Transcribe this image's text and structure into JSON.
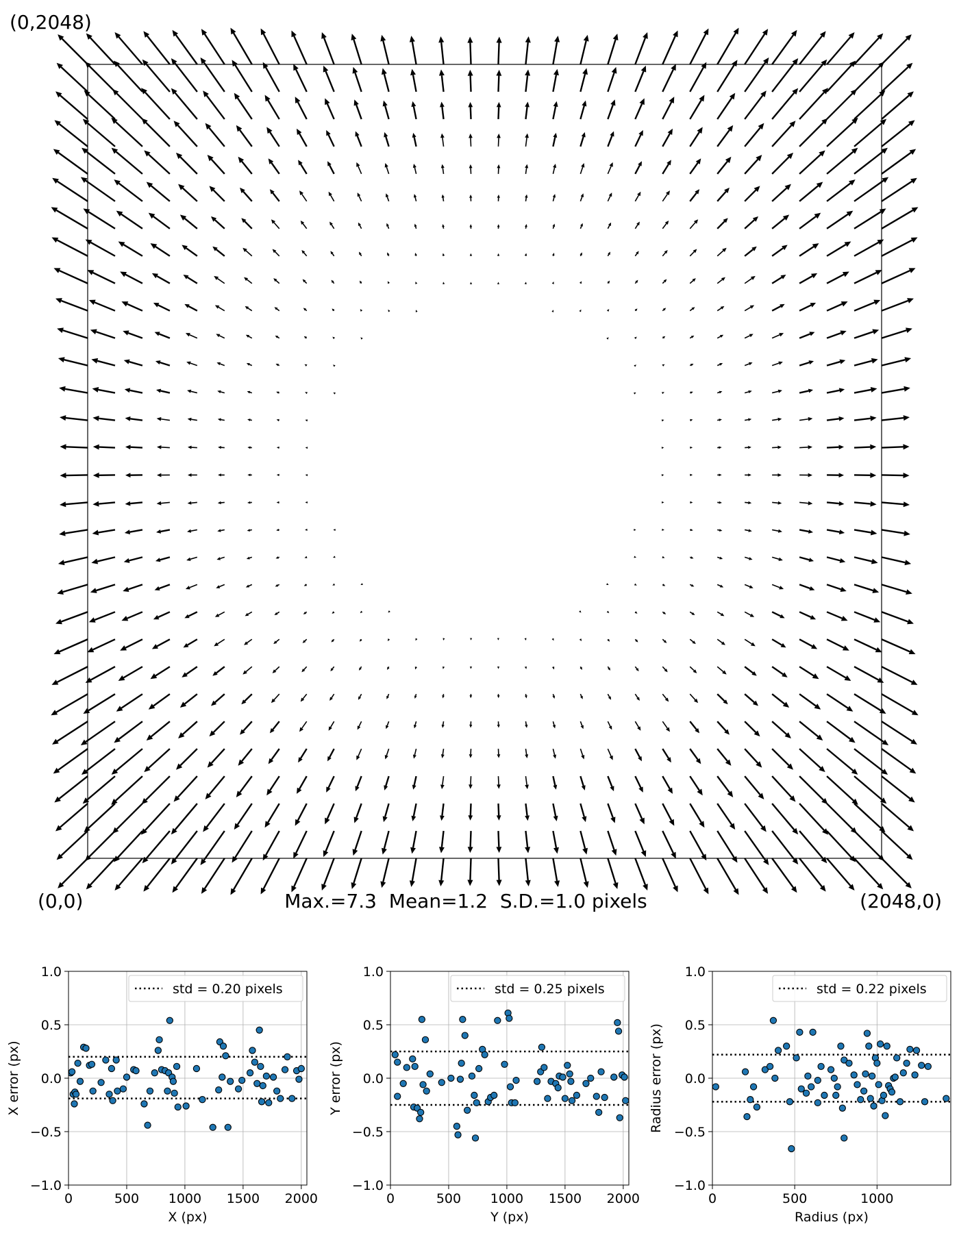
{
  "chart_data": [
    {
      "type": "quiver",
      "title": "",
      "corner_labels": {
        "top_left": "(0,2048)",
        "bottom_left": "(0,0)",
        "bottom_right": "(2048,0)"
      },
      "stats_text": "Max.=7.3  Mean=1.2  S.D.=1.0 pixels",
      "field": {
        "grid": 30,
        "range": [
          0,
          2048
        ],
        "max_magnitude": 7.3,
        "mean_magnitude": 1.2,
        "sd_magnitude": 1.0,
        "description_note": ""
      }
    },
    {
      "type": "scatter",
      "xlabel": "X (px)",
      "ylabel": "X error (px)",
      "xlim": [
        0,
        2048
      ],
      "ylim": [
        -1.0,
        1.0
      ],
      "xticks": [
        0,
        500,
        1000,
        1500,
        2000
      ],
      "yticks": [
        -1.0,
        -0.5,
        0.0,
        0.5,
        1.0
      ],
      "xtick_labels": [
        "0",
        "500",
        "1000",
        "1500",
        "2000"
      ],
      "ytick_labels": [
        "−1.0",
        "−0.5",
        "0.0",
        "0.5",
        "1.0"
      ],
      "grid": true,
      "legend": {
        "label": "std = 0.20 pixels",
        "placement": "upper right"
      },
      "hlines": [
        0.2,
        -0.19
      ],
      "points": [
        [
          20,
          0.05
        ],
        [
          30,
          0.06
        ],
        [
          40,
          -0.15
        ],
        [
          50,
          -0.24
        ],
        [
          55,
          -0.13
        ],
        [
          65,
          -0.15
        ],
        [
          80,
          0.14
        ],
        [
          100,
          -0.03
        ],
        [
          130,
          0.29
        ],
        [
          150,
          0.28
        ],
        [
          180,
          0.12
        ],
        [
          200,
          0.13
        ],
        [
          210,
          -0.12
        ],
        [
          280,
          -0.04
        ],
        [
          320,
          0.17
        ],
        [
          350,
          -0.15
        ],
        [
          370,
          0.09
        ],
        [
          380,
          -0.21
        ],
        [
          410,
          0.17
        ],
        [
          420,
          -0.12
        ],
        [
          470,
          -0.1
        ],
        [
          500,
          0.01
        ],
        [
          560,
          0.08
        ],
        [
          580,
          0.07
        ],
        [
          650,
          -0.24
        ],
        [
          680,
          -0.44
        ],
        [
          700,
          -0.12
        ],
        [
          740,
          0.05
        ],
        [
          770,
          0.26
        ],
        [
          780,
          0.36
        ],
        [
          800,
          0.08
        ],
        [
          830,
          0.07
        ],
        [
          850,
          -0.12
        ],
        [
          860,
          0.05
        ],
        [
          870,
          0.54
        ],
        [
          890,
          0.01
        ],
        [
          900,
          -0.03
        ],
        [
          910,
          -0.14
        ],
        [
          930,
          0.11
        ],
        [
          940,
          -0.27
        ],
        [
          1010,
          -0.26
        ],
        [
          1100,
          0.09
        ],
        [
          1150,
          -0.2
        ],
        [
          1240,
          -0.46
        ],
        [
          1290,
          -0.11
        ],
        [
          1300,
          0.34
        ],
        [
          1320,
          0.01
        ],
        [
          1330,
          0.3
        ],
        [
          1350,
          0.21
        ],
        [
          1370,
          -0.46
        ],
        [
          1390,
          -0.03
        ],
        [
          1460,
          -0.1
        ],
        [
          1490,
          -0.02
        ],
        [
          1560,
          0.05
        ],
        [
          1580,
          0.26
        ],
        [
          1600,
          0.15
        ],
        [
          1620,
          -0.05
        ],
        [
          1640,
          0.45
        ],
        [
          1650,
          0.11
        ],
        [
          1660,
          -0.22
        ],
        [
          1670,
          -0.07
        ],
        [
          1700,
          0.02
        ],
        [
          1720,
          -0.23
        ],
        [
          1760,
          0.01
        ],
        [
          1790,
          -0.12
        ],
        [
          1820,
          -0.19
        ],
        [
          1860,
          0.08
        ],
        [
          1880,
          0.2
        ],
        [
          1920,
          -0.19
        ],
        [
          1960,
          0.07
        ],
        [
          1980,
          -0.01
        ],
        [
          2000,
          0.09
        ]
      ]
    },
    {
      "type": "scatter",
      "xlabel": "Y (px)",
      "ylabel": "Y error (px)",
      "xlim": [
        0,
        2048
      ],
      "ylim": [
        -1.0,
        1.0
      ],
      "xticks": [
        0,
        500,
        1000,
        1500,
        2000
      ],
      "yticks": [
        -1.0,
        -0.5,
        0.0,
        0.5,
        1.0
      ],
      "xtick_labels": [
        "0",
        "500",
        "1000",
        "1500",
        "2000"
      ],
      "ytick_labels": [
        "−1.0",
        "−0.5",
        "0.0",
        "0.5",
        "1.0"
      ],
      "grid": true,
      "legend": {
        "label": "std = 0.25 pixels",
        "placement": "upper right"
      },
      "hlines": [
        0.25,
        -0.25
      ],
      "points": [
        [
          40,
          0.22
        ],
        [
          60,
          0.15
        ],
        [
          60,
          -0.17
        ],
        [
          110,
          -0.05
        ],
        [
          140,
          0.1
        ],
        [
          190,
          0.18
        ],
        [
          200,
          -0.27
        ],
        [
          210,
          0.11
        ],
        [
          230,
          -0.28
        ],
        [
          250,
          -0.38
        ],
        [
          260,
          -0.32
        ],
        [
          270,
          0.55
        ],
        [
          280,
          -0.06
        ],
        [
          300,
          0.36
        ],
        [
          310,
          -0.12
        ],
        [
          340,
          0.04
        ],
        [
          440,
          -0.04
        ],
        [
          520,
          0.0
        ],
        [
          570,
          -0.45
        ],
        [
          580,
          -0.53
        ],
        [
          600,
          -0.01
        ],
        [
          610,
          0.14
        ],
        [
          620,
          0.55
        ],
        [
          640,
          0.4
        ],
        [
          660,
          -0.3
        ],
        [
          700,
          0.02
        ],
        [
          720,
          -0.16
        ],
        [
          730,
          -0.56
        ],
        [
          740,
          -0.23
        ],
        [
          760,
          0.09
        ],
        [
          790,
          0.27
        ],
        [
          810,
          0.22
        ],
        [
          840,
          -0.22
        ],
        [
          860,
          -0.18
        ],
        [
          890,
          -0.16
        ],
        [
          920,
          0.54
        ],
        [
          980,
          0.13
        ],
        [
          1010,
          0.61
        ],
        [
          1020,
          0.56
        ],
        [
          1030,
          -0.08
        ],
        [
          1040,
          -0.23
        ],
        [
          1070,
          -0.23
        ],
        [
          1080,
          -0.02
        ],
        [
          1260,
          -0.03
        ],
        [
          1290,
          0.06
        ],
        [
          1300,
          0.29
        ],
        [
          1320,
          0.1
        ],
        [
          1350,
          -0.19
        ],
        [
          1380,
          -0.03
        ],
        [
          1420,
          -0.05
        ],
        [
          1440,
          -0.09
        ],
        [
          1450,
          0.02
        ],
        [
          1480,
          0.01
        ],
        [
          1500,
          -0.19
        ],
        [
          1520,
          0.12
        ],
        [
          1540,
          0.04
        ],
        [
          1550,
          -0.03
        ],
        [
          1560,
          -0.21
        ],
        [
          1600,
          -0.16
        ],
        [
          1680,
          -0.05
        ],
        [
          1720,
          0.0
        ],
        [
          1770,
          -0.17
        ],
        [
          1790,
          -0.32
        ],
        [
          1810,
          0.06
        ],
        [
          1840,
          -0.18
        ],
        [
          1920,
          0.01
        ],
        [
          1950,
          0.52
        ],
        [
          1960,
          0.44
        ],
        [
          1970,
          -0.37
        ],
        [
          1990,
          0.03
        ],
        [
          2010,
          0.01
        ],
        [
          2020,
          -0.21
        ]
      ]
    },
    {
      "type": "scatter",
      "xlabel": "Radius (px)",
      "ylabel": "Radius error (px)",
      "xlim": [
        0,
        1448
      ],
      "ylim": [
        -1.0,
        1.0
      ],
      "xticks": [
        0,
        500,
        1000
      ],
      "yticks": [
        -1.0,
        -0.5,
        0.0,
        0.5,
        1.0
      ],
      "xtick_labels": [
        "0",
        "500",
        "1000"
      ],
      "ytick_labels": [
        "−1.0",
        "−0.5",
        "0.0",
        "0.5",
        "1.0"
      ],
      "grid": true,
      "legend": {
        "label": "std = 0.22 pixels",
        "placement": "upper right"
      },
      "hlines": [
        0.22,
        -0.22
      ],
      "points": [
        [
          20,
          -0.08
        ],
        [
          200,
          0.06
        ],
        [
          210,
          -0.36
        ],
        [
          230,
          -0.2
        ],
        [
          250,
          -0.08
        ],
        [
          270,
          -0.27
        ],
        [
          320,
          0.08
        ],
        [
          350,
          0.11
        ],
        [
          370,
          0.54
        ],
        [
          400,
          0.26
        ],
        [
          380,
          0.0
        ],
        [
          450,
          0.3
        ],
        [
          470,
          -0.22
        ],
        [
          480,
          -0.66
        ],
        [
          510,
          0.19
        ],
        [
          530,
          0.43
        ],
        [
          540,
          -0.1
        ],
        [
          570,
          -0.14
        ],
        [
          580,
          0.02
        ],
        [
          600,
          -0.08
        ],
        [
          610,
          0.43
        ],
        [
          640,
          -0.23
        ],
        [
          640,
          -0.02
        ],
        [
          660,
          0.11
        ],
        [
          680,
          -0.16
        ],
        [
          720,
          0.08
        ],
        [
          740,
          0.0
        ],
        [
          750,
          -0.16
        ],
        [
          760,
          -0.08
        ],
        [
          780,
          0.3
        ],
        [
          790,
          -0.28
        ],
        [
          800,
          0.17
        ],
        [
          800,
          -0.56
        ],
        [
          830,
          0.14
        ],
        [
          860,
          0.03
        ],
        [
          880,
          -0.06
        ],
        [
          900,
          -0.2
        ],
        [
          920,
          -0.12
        ],
        [
          930,
          0.04
        ],
        [
          940,
          0.42
        ],
        [
          950,
          0.3
        ],
        [
          960,
          -0.19
        ],
        [
          970,
          0.02
        ],
        [
          980,
          -0.26
        ],
        [
          990,
          0.19
        ],
        [
          1000,
          0.14
        ],
        [
          1010,
          -0.06
        ],
        [
          1020,
          0.32
        ],
        [
          1030,
          -0.21
        ],
        [
          1040,
          -0.16
        ],
        [
          1050,
          -0.35
        ],
        [
          1060,
          0.3
        ],
        [
          1070,
          -0.07
        ],
        [
          1080,
          -0.1
        ],
        [
          1090,
          -0.13
        ],
        [
          1100,
          0.0
        ],
        [
          1110,
          0.01
        ],
        [
          1120,
          0.19
        ],
        [
          1140,
          -0.22
        ],
        [
          1160,
          0.05
        ],
        [
          1180,
          0.14
        ],
        [
          1200,
          0.27
        ],
        [
          1230,
          0.03
        ],
        [
          1240,
          0.26
        ],
        [
          1270,
          0.12
        ],
        [
          1290,
          -0.22
        ],
        [
          1310,
          0.11
        ],
        [
          1420,
          -0.19
        ]
      ]
    }
  ]
}
